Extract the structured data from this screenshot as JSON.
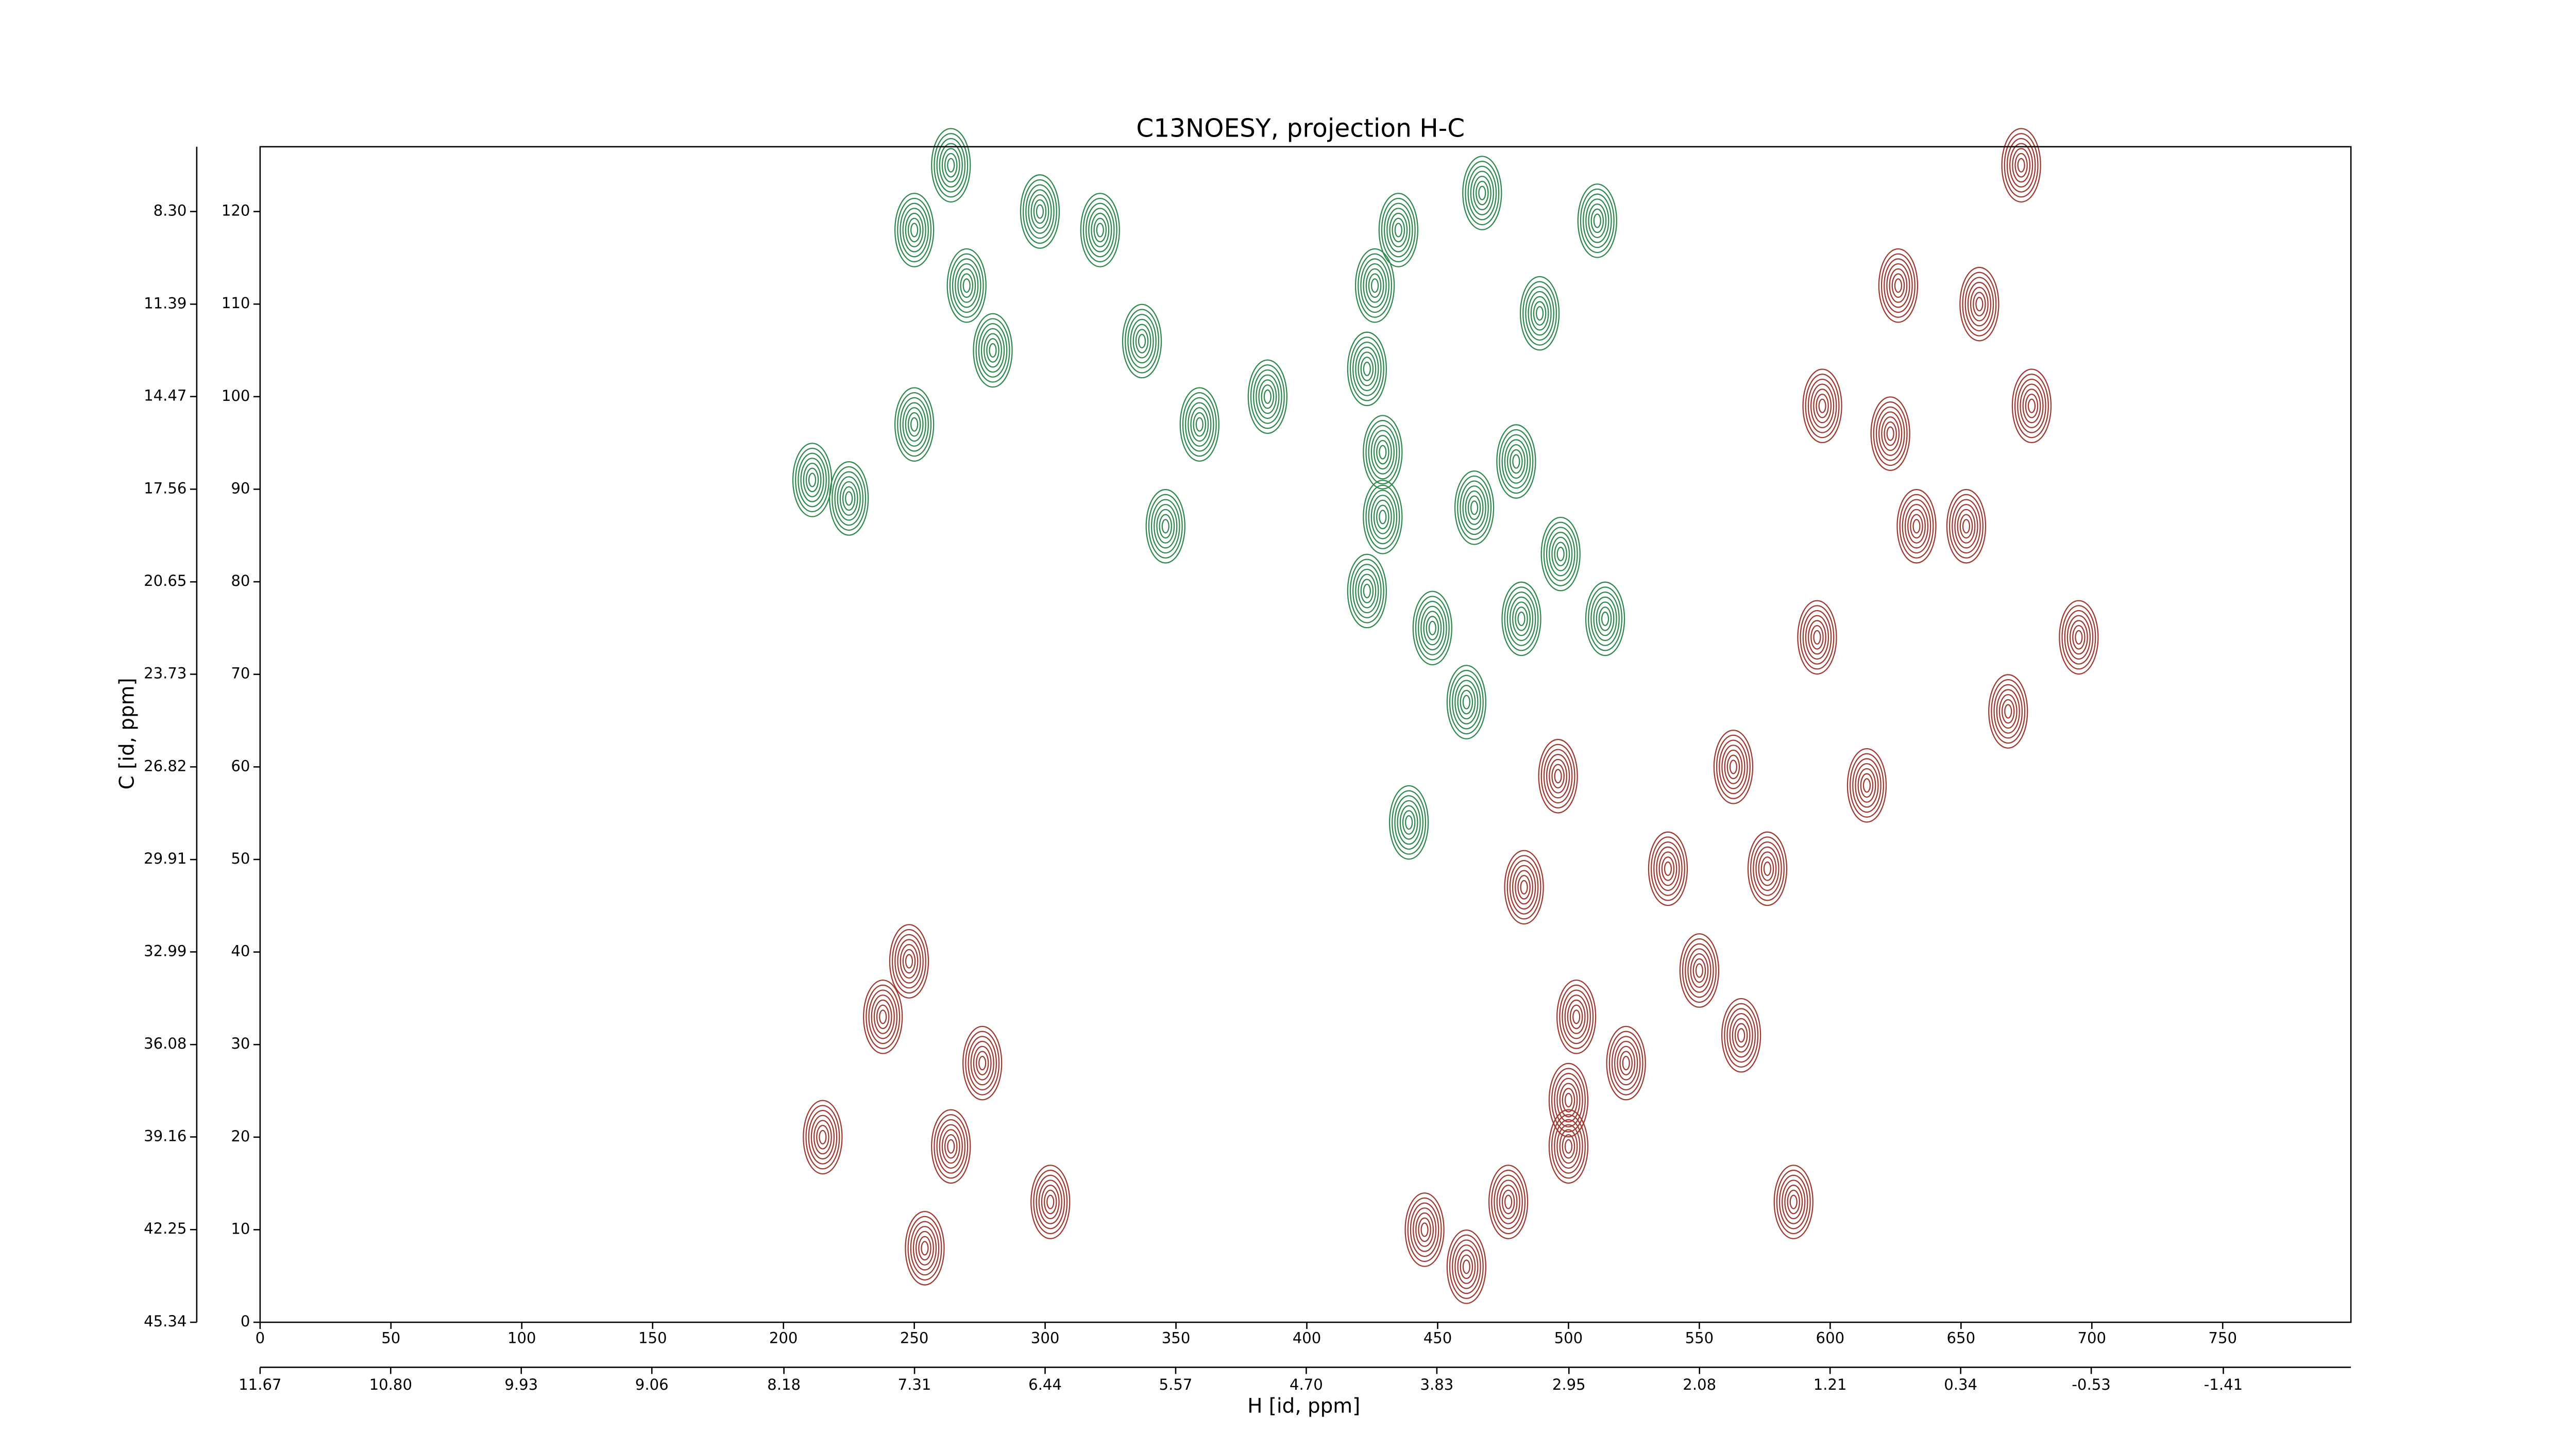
{
  "chart_data": {
    "type": "contour",
    "title": "C13NOESY, projection H-C",
    "x_label": "H [id, ppm]",
    "y_label": "C [id, ppm]",
    "xlim": [
      0,
      799
    ],
    "ylim": [
      0,
      127
    ],
    "xticks": [
      0,
      50,
      100,
      150,
      200,
      250,
      300,
      350,
      400,
      450,
      500,
      550,
      600,
      650,
      700,
      750
    ],
    "yticks": [
      0,
      10,
      20,
      30,
      40,
      50,
      60,
      70,
      80,
      90,
      100,
      110,
      120
    ],
    "x2lim": [
      11.67,
      -2.26
    ],
    "x2ticks": [
      11.67,
      {
        "value": 10.8,
        "label": "10.80"
      },
      9.93,
      9.06,
      8.18,
      7.31,
      6.44,
      5.57,
      {
        "value": 4.7,
        "label": "4.70"
      },
      3.83,
      2.95,
      2.08,
      1.21,
      0.34,
      -0.53,
      -1.41
    ],
    "y2lim": [
      45.34,
      6.14
    ],
    "y2ticks": [
      45.34,
      42.25,
      39.16,
      36.08,
      32.99,
      29.91,
      26.82,
      23.73,
      20.65,
      17.56,
      14.47,
      11.39,
      {
        "value": 8.3,
        "label": "8.30"
      }
    ],
    "series": [
      {
        "color": "#a0392f",
        "x": [
          673,
          626,
          657,
          597,
          623,
          677,
          633,
          652,
          695,
          668,
          563,
          538,
          550,
          566,
          503,
          500,
          522,
          500,
          445,
          461,
          586,
          248,
          238,
          276,
          264,
          215,
          254,
          302,
          477,
          483,
          496,
          595,
          614,
          576
        ],
        "y": [
          125,
          112,
          110,
          99,
          96,
          99,
          86,
          86,
          74,
          66,
          60,
          49,
          38,
          31,
          33,
          24,
          28,
          19,
          10,
          6,
          13,
          39,
          33,
          28,
          19,
          20,
          8,
          13,
          13,
          47,
          59,
          74,
          58,
          49
        ]
      },
      {
        "color": "#2e8a4c",
        "x": [
          264,
          250,
          270,
          280,
          298,
          321,
          337,
          426,
          435,
          467,
          511,
          489,
          423,
          385,
          359,
          429,
          480,
          464,
          429,
          225,
          211,
          423,
          448,
          482,
          497,
          514,
          461,
          439,
          346,
          250
        ],
        "y": [
          125,
          118,
          112,
          105,
          120,
          118,
          106,
          112,
          118,
          122,
          119,
          109,
          103,
          100,
          97,
          94,
          93,
          88,
          87,
          89,
          91,
          79,
          75,
          76,
          83,
          76,
          67,
          54,
          86,
          97
        ]
      }
    ]
  }
}
